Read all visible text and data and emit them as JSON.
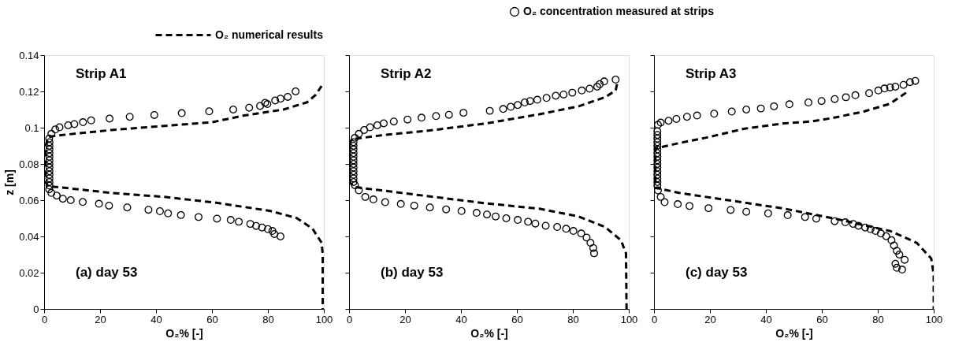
{
  "chart_data": [
    {
      "type": "line",
      "xlabel": "O₂% [-]",
      "ylabel": "z [m]",
      "annotations": [
        "Strip A1",
        "(a) day 53"
      ],
      "legend": "top",
      "xlim": [
        0,
        100
      ],
      "ylim": [
        0,
        0.14
      ],
      "xticks": [
        0,
        20,
        40,
        60,
        80,
        100
      ],
      "yticks": [
        0,
        0.02,
        0.04,
        0.06,
        0.08,
        0.1,
        0.12,
        0.14
      ],
      "series": [
        {
          "name": "O₂ numerical results",
          "line_style": "dashed",
          "color": "#000000",
          "x": [
            99.2,
            97,
            94,
            85.6,
            71.5,
            60,
            43,
            24,
            5.5,
            1.7,
            0.5,
            0.5,
            1.5,
            4.5,
            24,
            43,
            62,
            81,
            90.2,
            95.9,
            99.2,
            99.6,
            99.6
          ],
          "values": [
            0.123,
            0.118,
            0.114,
            0.11,
            0.1067,
            0.103,
            0.101,
            0.0987,
            0.0958,
            0.095,
            0.09,
            0.07,
            0.0675,
            0.0673,
            0.064,
            0.0618,
            0.0585,
            0.054,
            0.0502,
            0.0444,
            0.0365,
            0.03,
            0
          ]
        },
        {
          "name": "O₂ concentration measured at strips",
          "type": "scatter",
          "marker": "circle",
          "color": "#000000",
          "x": [
            84.5,
            82.3,
            81.6,
            80,
            77.9,
            75.8,
            73.7,
            69.6,
            66.7,
            61.8,
            55.2,
            48.9,
            44.3,
            41.4,
            37.3,
            29.7,
            23.2,
            19.6,
            13.8,
            9.5,
            6.7,
            4.5,
            2.6,
            1.8,
            1.9,
            1.9,
            1.9,
            1.9,
            1.9,
            1.9,
            1.9,
            1.9,
            1.9,
            1.9,
            1.9,
            1.9,
            1.9,
            1.8,
            2.6,
            4,
            5.5,
            8.6,
            10.8,
            13.9,
            16.8,
            23.4,
            30.6,
            39.4,
            49.2,
            59,
            67.6,
            73.3,
            77.2,
            79,
            79.8,
            82.6,
            84.5,
            87.1,
            89.9
          ],
          "values": [
            0.04,
            0.0413,
            0.043,
            0.044,
            0.0449,
            0.0458,
            0.0469,
            0.0481,
            0.0491,
            0.0498,
            0.0507,
            0.0518,
            0.0527,
            0.0539,
            0.0547,
            0.056,
            0.057,
            0.058,
            0.059,
            0.06,
            0.0608,
            0.0625,
            0.064,
            0.066,
            0.068,
            0.07,
            0.072,
            0.074,
            0.076,
            0.078,
            0.08,
            0.082,
            0.084,
            0.086,
            0.088,
            0.09,
            0.092,
            0.094,
            0.0966,
            0.099,
            0.1002,
            0.1013,
            0.102,
            0.103,
            0.104,
            0.105,
            0.106,
            0.107,
            0.108,
            0.109,
            0.11,
            0.111,
            0.112,
            0.1137,
            0.113,
            0.115,
            0.116,
            0.117,
            0.12
          ]
        }
      ]
    },
    {
      "type": "line",
      "xlabel": "O₂% [-]",
      "annotations": [
        "Strip A2",
        "(b) day 53"
      ],
      "tick_labels": "x",
      "xlim": [
        0,
        100
      ],
      "ylim": [
        0,
        0.14
      ],
      "xticks": [
        0,
        20,
        40,
        60,
        80,
        100
      ],
      "yticks": [
        0,
        0.02,
        0.04,
        0.06,
        0.08,
        0.1,
        0.12,
        0.14
      ],
      "series": [
        {
          "line_style": "dashed",
          "color": "#000000",
          "x": [
            95.8,
            95.3,
            91.5,
            82.1,
            68,
            49.2,
            30.3,
            11.5,
            4.9,
            1.1,
            0.2,
            0.2,
            2.1,
            11.5,
            30.3,
            49.2,
            68,
            82.1,
            91.5,
            97.2,
            99,
            99.2
          ],
          "values": [
            0.124,
            0.1205,
            0.1168,
            0.1118,
            0.1074,
            0.1024,
            0.0987,
            0.0958,
            0.0944,
            0.0937,
            0.0915,
            0.0698,
            0.0672,
            0.0654,
            0.0618,
            0.0582,
            0.0553,
            0.051,
            0.0452,
            0.0379,
            0.0307,
            0
          ]
        },
        {
          "type": "scatter",
          "marker": "circle",
          "color": "#000000",
          "x": [
            87.6,
            87.3,
            86.3,
            84.9,
            83,
            80.2,
            77.6,
            74.4,
            70.3,
            66.6,
            64,
            60.3,
            56.2,
            52.4,
            49.3,
            45.6,
            40.2,
            34.7,
            28.9,
            23.3,
            18.5,
            12.9,
            8.7,
            5.8,
            3.5,
            2.1,
            1.6,
            1.6,
            1.6,
            1.6,
            1.6,
            1.6,
            1.6,
            1.6,
            1.6,
            1.6,
            1.6,
            1.6,
            2.1,
            3.5,
            5.4,
            7.5,
            10.1,
            12.4,
            16,
            20.9,
            25.9,
            31.1,
            35.7,
            40.9,
            50.3,
            55.1,
            57.8,
            60.3,
            62.8,
            64.7,
            67.3,
            70.6,
            73.9,
            76.7,
            79.8,
            83.2,
            86,
            88.7,
            89.6,
            91.2,
            95.3
          ],
          "values": [
            0.0307,
            0.0336,
            0.0365,
            0.0394,
            0.0416,
            0.043,
            0.0442,
            0.0452,
            0.0459,
            0.0471,
            0.0481,
            0.0491,
            0.05,
            0.051,
            0.0521,
            0.053,
            0.054,
            0.0549,
            0.056,
            0.057,
            0.0579,
            0.0589,
            0.0604,
            0.0618,
            0.0654,
            0.0683,
            0.07,
            0.072,
            0.074,
            0.076,
            0.078,
            0.08,
            0.082,
            0.084,
            0.086,
            0.088,
            0.09,
            0.092,
            0.0944,
            0.0966,
            0.0987,
            0.1002,
            0.1013,
            0.1024,
            0.1034,
            0.1045,
            0.1055,
            0.1064,
            0.1071,
            0.1082,
            0.1093,
            0.1103,
            0.1115,
            0.1125,
            0.1139,
            0.1147,
            0.1154,
            0.1164,
            0.1176,
            0.1183,
            0.1193,
            0.1205,
            0.1215,
            0.1226,
            0.124,
            0.1255,
            0.1265
          ]
        }
      ]
    },
    {
      "type": "line",
      "xlabel": "O₂% [-]",
      "annotations": [
        "Strip A3",
        "(c) day 53"
      ],
      "tick_labels": "x",
      "xlim": [
        0,
        100
      ],
      "ylim": [
        0,
        0.14
      ],
      "xticks": [
        0,
        20,
        40,
        60,
        80,
        100
      ],
      "yticks": [
        0,
        0.02,
        0.04,
        0.06,
        0.08,
        0.1,
        0.12,
        0.14
      ],
      "series": [
        {
          "line_style": "dashed",
          "color": "#000000",
          "x": [
            90.1,
            84.4,
            75,
            63.7,
            56.1,
            46.7,
            32.5,
            18.4,
            9,
            0.5,
            0.5,
            9,
            27.8,
            46.7,
            65.6,
            84.4,
            93.9,
            99.1,
            100,
            100
          ],
          "values": [
            0.1193,
            0.1132,
            0.1089,
            0.1053,
            0.1034,
            0.1024,
            0.0995,
            0.0944,
            0.0915,
            0.0886,
            0.0669,
            0.064,
            0.0597,
            0.0553,
            0.0495,
            0.043,
            0.0365,
            0.0278,
            0.0191,
            0
          ]
        },
        {
          "type": "scatter",
          "marker": "circle",
          "color": "#000000",
          "x": [
            88.7,
            86.8,
            86.3,
            89.6,
            87.7,
            86.8,
            85.8,
            84.9,
            83,
            81.1,
            79.2,
            77.4,
            75.5,
            73.1,
            71.2,
            68.4,
            64.6,
            58,
            54,
            47.8,
            40.8,
            33,
            27.4,
            19.5,
            12.7,
            8.5,
            3.8,
            2.4,
            1.4,
            1.2,
            1.2,
            1.2,
            1.2,
            1.2,
            1.2,
            1.2,
            1.2,
            1.2,
            1.2,
            1.2,
            1.2,
            1.2,
            1.2,
            1.2,
            1.2,
            1.4,
            2.4,
            5.2,
            8,
            11.8,
            15.4,
            21.5,
            27.8,
            33,
            38.2,
            42.9,
            48.4,
            55.2,
            59.9,
            64.6,
            68.6,
            72,
            76.9,
            80.2,
            82.4,
            84.4,
            86.3,
            89.2,
            91.5,
            93.4
          ],
          "values": [
            0.0217,
            0.0227,
            0.0249,
            0.0271,
            0.03,
            0.0321,
            0.035,
            0.0379,
            0.0401,
            0.0416,
            0.043,
            0.044,
            0.0449,
            0.0459,
            0.0469,
            0.0478,
            0.0484,
            0.0498,
            0.0507,
            0.0517,
            0.0527,
            0.0536,
            0.0546,
            0.0556,
            0.0568,
            0.0578,
            0.0589,
            0.0618,
            0.0654,
            0.068,
            0.07,
            0.072,
            0.074,
            0.076,
            0.078,
            0.08,
            0.082,
            0.084,
            0.086,
            0.088,
            0.09,
            0.092,
            0.094,
            0.096,
            0.098,
            0.1016,
            0.1028,
            0.1038,
            0.1048,
            0.106,
            0.1067,
            0.1077,
            0.1089,
            0.11,
            0.1106,
            0.1118,
            0.1129,
            0.1139,
            0.1147,
            0.1158,
            0.1168,
            0.1179,
            0.119,
            0.1205,
            0.1216,
            0.1222,
            0.1226,
            0.1236,
            0.1251,
            0.1258
          ]
        }
      ]
    }
  ]
}
